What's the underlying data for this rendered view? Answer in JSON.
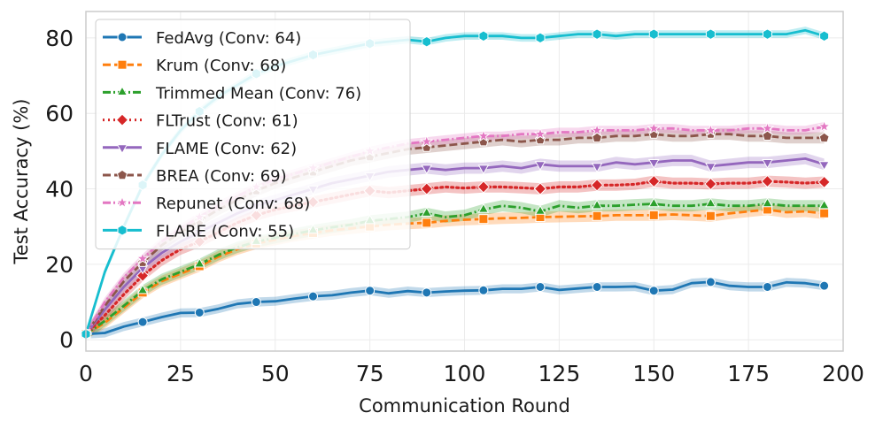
{
  "chart_data": {
    "type": "line",
    "title": "",
    "xlabel": "Communication Round",
    "ylabel": "Test Accuracy (%)",
    "xlim": [
      0,
      200
    ],
    "ylim": [
      -3,
      87
    ],
    "xticks": [
      0,
      25,
      50,
      75,
      100,
      125,
      150,
      175,
      200
    ],
    "yticks": [
      0,
      20,
      40,
      60,
      80
    ],
    "grid": true,
    "legend_position": "top-left",
    "series": [
      {
        "name": "FedAvg (Conv: 64)",
        "color": "#1f77b4",
        "dash": "solid",
        "marker": "circle",
        "x": [
          0,
          5,
          10,
          15,
          20,
          25,
          30,
          35,
          40,
          45,
          50,
          55,
          60,
          65,
          70,
          75,
          80,
          85,
          90,
          95,
          100,
          105,
          110,
          115,
          120,
          125,
          130,
          135,
          140,
          145,
          150,
          155,
          160,
          165,
          170,
          175,
          180,
          185,
          190,
          195
        ],
        "y": [
          1.5,
          1.8,
          3.5,
          4.7,
          6.0,
          7.1,
          7.2,
          8.2,
          9.5,
          10.0,
          10.2,
          10.9,
          11.5,
          11.8,
          12.5,
          13.0,
          12.3,
          12.9,
          12.5,
          12.8,
          13.0,
          13.1,
          13.5,
          13.5,
          14.0,
          13.2,
          13.6,
          14.0,
          14.0,
          14.1,
          13.0,
          13.3,
          15.0,
          15.3,
          14.3,
          14.0,
          14.0,
          15.2,
          15.0,
          14.3
        ],
        "band": 1.2,
        "marker_every": 3
      },
      {
        "name": "Krum (Conv: 68)",
        "color": "#ff7f0e",
        "dash": "dashed",
        "marker": "square",
        "x": [
          0,
          5,
          10,
          15,
          20,
          25,
          30,
          35,
          40,
          45,
          50,
          55,
          60,
          65,
          70,
          75,
          80,
          85,
          90,
          95,
          100,
          105,
          110,
          115,
          120,
          125,
          130,
          135,
          140,
          145,
          150,
          155,
          160,
          165,
          170,
          175,
          180,
          185,
          190,
          195
        ],
        "y": [
          1.5,
          4.5,
          8.5,
          12.5,
          15.5,
          17.5,
          19.5,
          22.0,
          24.0,
          25.5,
          26.5,
          27.5,
          28.3,
          29.0,
          29.5,
          30.0,
          30.5,
          30.8,
          31.0,
          31.5,
          31.8,
          32.0,
          32.2,
          32.3,
          32.5,
          32.6,
          32.7,
          32.8,
          33.0,
          33.0,
          33.0,
          33.2,
          33.0,
          32.8,
          33.5,
          34.0,
          34.5,
          33.8,
          34.0,
          33.5
        ],
        "band": 1.5,
        "marker_every": 3
      },
      {
        "name": "Trimmed Mean (Conv: 76)",
        "color": "#2ca02c",
        "dash": "dashdot",
        "marker": "triangle-up",
        "x": [
          0,
          5,
          10,
          15,
          20,
          25,
          30,
          35,
          40,
          45,
          50,
          55,
          60,
          65,
          70,
          75,
          80,
          85,
          90,
          95,
          100,
          105,
          110,
          115,
          120,
          125,
          130,
          135,
          140,
          145,
          150,
          155,
          160,
          165,
          170,
          175,
          180,
          185,
          190,
          195
        ],
        "y": [
          1.5,
          5.0,
          9.0,
          13.0,
          16.0,
          18.0,
          20.0,
          22.5,
          24.5,
          26.0,
          27.0,
          28.0,
          29.0,
          29.8,
          30.5,
          31.5,
          32.0,
          32.5,
          33.5,
          32.5,
          33.0,
          34.5,
          35.5,
          35.0,
          34.0,
          35.5,
          35.0,
          35.5,
          35.5,
          35.8,
          36.0,
          35.5,
          35.5,
          36.0,
          35.5,
          35.5,
          36.0,
          35.5,
          35.5,
          35.5
        ],
        "band": 1.5,
        "marker_every": 3
      },
      {
        "name": "FLTrust (Conv: 61)",
        "color": "#d62728",
        "dash": "dotted",
        "marker": "diamond",
        "x": [
          0,
          5,
          10,
          15,
          20,
          25,
          30,
          35,
          40,
          45,
          50,
          55,
          60,
          65,
          70,
          75,
          80,
          85,
          90,
          95,
          100,
          105,
          110,
          115,
          120,
          125,
          130,
          135,
          140,
          145,
          150,
          155,
          160,
          165,
          170,
          175,
          180,
          185,
          190,
          195
        ],
        "y": [
          1.5,
          6.5,
          12.0,
          17.0,
          21.0,
          24.0,
          26.0,
          28.5,
          31.0,
          33.0,
          34.5,
          35.5,
          36.5,
          37.5,
          38.5,
          39.5,
          39.0,
          39.5,
          40.0,
          40.5,
          40.2,
          40.5,
          40.5,
          40.3,
          40.0,
          40.5,
          40.5,
          41.0,
          41.0,
          41.2,
          42.0,
          41.5,
          41.5,
          41.3,
          41.5,
          41.5,
          42.0,
          41.8,
          41.5,
          41.8
        ],
        "band": 1.5,
        "marker_every": 3
      },
      {
        "name": "FLAME (Conv: 62)",
        "color": "#9467bd",
        "dash": "solid",
        "marker": "triangle-down",
        "x": [
          0,
          5,
          10,
          15,
          20,
          25,
          30,
          35,
          40,
          45,
          50,
          55,
          60,
          65,
          70,
          75,
          80,
          85,
          90,
          95,
          100,
          105,
          110,
          115,
          120,
          125,
          130,
          135,
          140,
          145,
          150,
          155,
          160,
          165,
          170,
          175,
          180,
          185,
          190,
          195
        ],
        "y": [
          1.5,
          8.0,
          14.0,
          19.0,
          23.0,
          26.0,
          28.5,
          31.0,
          33.5,
          35.5,
          37.0,
          38.5,
          40.0,
          41.5,
          42.5,
          43.5,
          44.5,
          45.0,
          45.5,
          45.0,
          45.5,
          45.5,
          46.0,
          45.5,
          46.5,
          46.0,
          46.0,
          46.0,
          47.0,
          46.5,
          47.0,
          47.5,
          47.5,
          46.0,
          46.5,
          47.0,
          47.0,
          47.5,
          48.0,
          46.5
        ],
        "band": 1.5,
        "marker_every": 3
      },
      {
        "name": "BREA (Conv: 69)",
        "color": "#8c564b",
        "dash": "dashed",
        "marker": "pentagon",
        "x": [
          0,
          5,
          10,
          15,
          20,
          25,
          30,
          35,
          40,
          45,
          50,
          55,
          60,
          65,
          70,
          75,
          80,
          85,
          90,
          95,
          100,
          105,
          110,
          115,
          120,
          125,
          130,
          135,
          140,
          145,
          150,
          155,
          160,
          165,
          170,
          175,
          180,
          185,
          190,
          195
        ],
        "y": [
          1.5,
          9.0,
          15.5,
          20.5,
          25.0,
          28.5,
          31.5,
          34.5,
          37.0,
          39.5,
          41.5,
          43.0,
          44.5,
          46.0,
          47.5,
          48.5,
          49.5,
          50.5,
          51.0,
          51.5,
          52.0,
          52.5,
          53.0,
          52.5,
          53.0,
          53.0,
          53.5,
          53.5,
          54.0,
          54.0,
          54.5,
          54.0,
          54.0,
          54.5,
          54.5,
          54.0,
          54.0,
          53.5,
          53.5,
          53.5
        ],
        "band": 1.5,
        "marker_every": 3
      },
      {
        "name": "Repunet (Conv: 68)",
        "color": "#e377c2",
        "dash": "dashdot",
        "marker": "star",
        "x": [
          0,
          5,
          10,
          15,
          20,
          25,
          30,
          35,
          40,
          45,
          50,
          55,
          60,
          65,
          70,
          75,
          80,
          85,
          90,
          95,
          100,
          105,
          110,
          115,
          120,
          125,
          130,
          135,
          140,
          145,
          150,
          155,
          160,
          165,
          170,
          175,
          180,
          185,
          190,
          195
        ],
        "y": [
          1.5,
          10.0,
          16.5,
          21.5,
          26.0,
          29.5,
          32.5,
          35.5,
          38.0,
          40.5,
          42.5,
          44.0,
          45.5,
          47.0,
          48.5,
          50.0,
          51.0,
          52.0,
          52.5,
          53.0,
          53.5,
          54.0,
          54.0,
          54.5,
          54.5,
          55.0,
          55.0,
          55.5,
          55.5,
          55.5,
          56.0,
          56.0,
          55.5,
          55.5,
          55.5,
          56.0,
          56.0,
          55.5,
          55.5,
          56.5
        ],
        "band": 1.2,
        "marker_every": 3
      },
      {
        "name": "FLARE (Conv: 55)",
        "color": "#17becf",
        "dash": "solid",
        "marker": "hexagon",
        "x": [
          0,
          5,
          10,
          15,
          20,
          25,
          30,
          35,
          40,
          45,
          50,
          55,
          60,
          65,
          70,
          75,
          80,
          85,
          90,
          95,
          100,
          105,
          110,
          115,
          120,
          125,
          130,
          135,
          140,
          145,
          150,
          155,
          160,
          165,
          170,
          175,
          180,
          185,
          190,
          195
        ],
        "y": [
          1.5,
          18.0,
          30.0,
          41.0,
          49.0,
          55.5,
          60.5,
          64.5,
          67.5,
          70.5,
          72.5,
          74.0,
          75.5,
          76.5,
          77.5,
          78.5,
          79.0,
          79.5,
          79.0,
          80.0,
          80.5,
          80.5,
          80.5,
          80.0,
          80.0,
          80.5,
          81.0,
          81.0,
          80.5,
          81.0,
          81.0,
          81.0,
          81.0,
          81.0,
          81.0,
          81.0,
          81.0,
          81.0,
          82.0,
          80.5
        ],
        "band": 1.0,
        "marker_every": 3
      }
    ]
  }
}
